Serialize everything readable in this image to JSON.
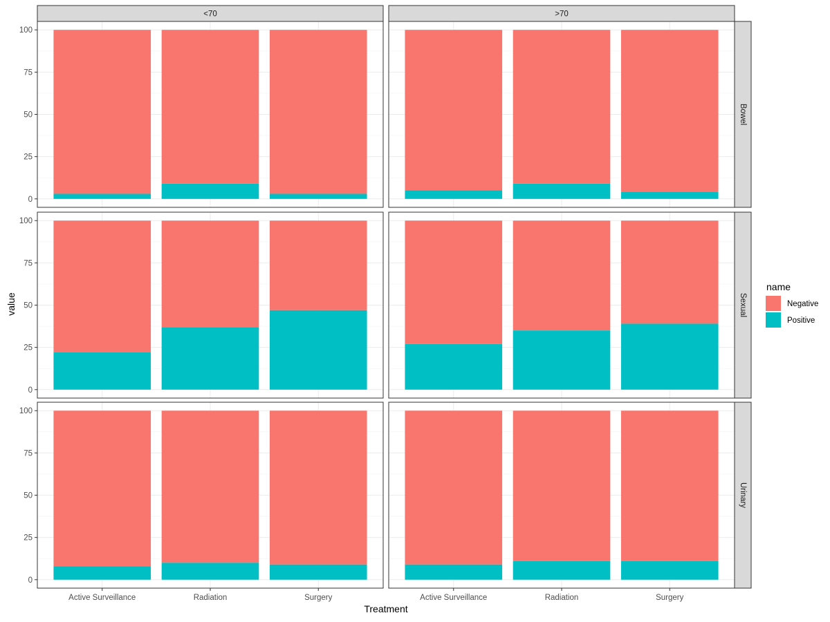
{
  "chart_data": {
    "type": "bar",
    "stacked": true,
    "title": "",
    "xlabel": "Treatment",
    "ylabel": "value",
    "ylim": [
      0,
      100
    ],
    "yticks": [
      0,
      25,
      50,
      75,
      100
    ],
    "grid": true,
    "legend": {
      "title": "name",
      "position": "right",
      "entries": [
        "Negative",
        "Positive"
      ]
    },
    "colors": {
      "Negative": "#F8766D",
      "Positive": "#00BFC4"
    },
    "categories": [
      "Active Surveillance",
      "Radiation",
      "Surgery"
    ],
    "col_facets": [
      "<70",
      ">70"
    ],
    "row_facets": [
      "Bowel",
      "Sexual",
      "Urinary"
    ],
    "panels": [
      {
        "row": "Bowel",
        "col": "<70",
        "series": [
          {
            "name": "Positive",
            "values": [
              3,
              9,
              3
            ]
          },
          {
            "name": "Negative",
            "values": [
              97,
              91,
              97
            ]
          }
        ]
      },
      {
        "row": "Bowel",
        "col": ">70",
        "series": [
          {
            "name": "Positive",
            "values": [
              5,
              9,
              4
            ]
          },
          {
            "name": "Negative",
            "values": [
              95,
              91,
              96
            ]
          }
        ]
      },
      {
        "row": "Sexual",
        "col": "<70",
        "series": [
          {
            "name": "Positive",
            "values": [
              22,
              37,
              47
            ]
          },
          {
            "name": "Negative",
            "values": [
              78,
              63,
              53
            ]
          }
        ]
      },
      {
        "row": "Sexual",
        "col": ">70",
        "series": [
          {
            "name": "Positive",
            "values": [
              27,
              35,
              39
            ]
          },
          {
            "name": "Negative",
            "values": [
              73,
              65,
              61
            ]
          }
        ]
      },
      {
        "row": "Urinary",
        "col": "<70",
        "series": [
          {
            "name": "Positive",
            "values": [
              8,
              10,
              9
            ]
          },
          {
            "name": "Negative",
            "values": [
              92,
              90,
              91
            ]
          }
        ]
      },
      {
        "row": "Urinary",
        "col": ">70",
        "series": [
          {
            "name": "Positive",
            "values": [
              9,
              11,
              11
            ]
          },
          {
            "name": "Negative",
            "values": [
              91,
              89,
              89
            ]
          }
        ]
      }
    ]
  }
}
